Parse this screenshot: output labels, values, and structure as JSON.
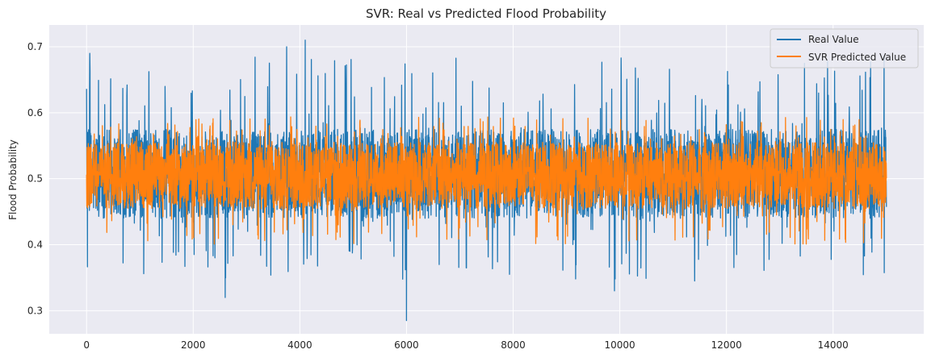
{
  "chart_data": {
    "type": "line",
    "title": "SVR: Real vs Predicted Flood Probability",
    "xlabel": "",
    "ylabel": "Flood Probability",
    "xlim": [
      -700,
      15700
    ],
    "ylim": [
      0.265,
      0.733
    ],
    "xticks": [
      0,
      2000,
      4000,
      6000,
      8000,
      10000,
      12000,
      14000
    ],
    "yticks": [
      0.3,
      0.4,
      0.5,
      0.6,
      0.7
    ],
    "xtick_labels": [
      "0",
      "2000",
      "4000",
      "6000",
      "8000",
      "10000",
      "12000",
      "14000"
    ],
    "ytick_labels": [
      "0.3",
      "0.4",
      "0.5",
      "0.6",
      "0.7"
    ],
    "grid": true,
    "legend_position": "top-right",
    "n_points": 15000,
    "series": [
      {
        "name": "Real Value",
        "color": "#1f77b4",
        "band": {
          "typical_low": 0.44,
          "typical_high": 0.575,
          "extreme_low": 0.33,
          "extreme_high": 0.7
        },
        "notable_points": [
          {
            "x": 60,
            "y": 0.69
          },
          {
            "x": 3750,
            "y": 0.7
          },
          {
            "x": 4100,
            "y": 0.71
          },
          {
            "x": 2600,
            "y": 0.32
          },
          {
            "x": 6000,
            "y": 0.285
          },
          {
            "x": 9900,
            "y": 0.33
          }
        ]
      },
      {
        "name": "SVR Predicted Value",
        "color": "#ff7f0e",
        "band": {
          "typical_low": 0.455,
          "typical_high": 0.555,
          "extreme_low": 0.395,
          "extreme_high": 0.598
        }
      }
    ]
  }
}
